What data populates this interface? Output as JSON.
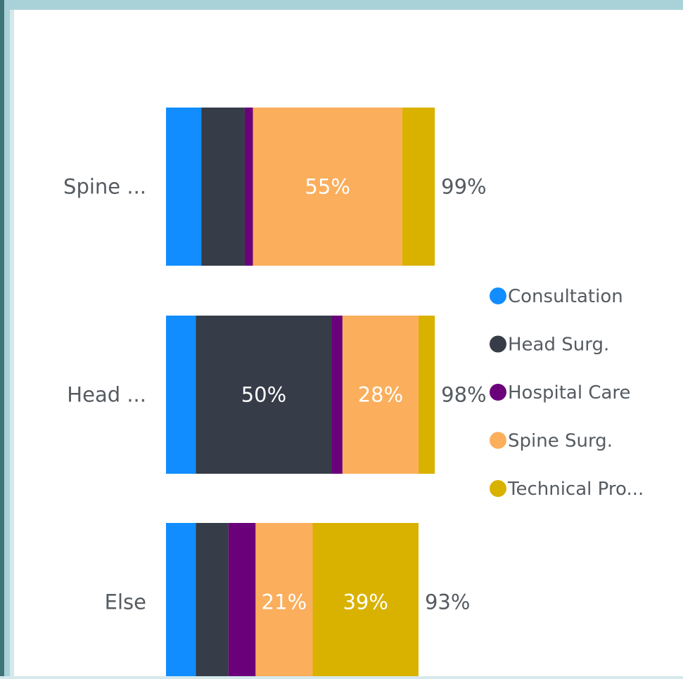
{
  "chart_data": {
    "type": "bar",
    "orientation": "horizontal",
    "stacked": true,
    "categories": [
      "Spine ...",
      "Head ...",
      "Else"
    ],
    "series": [
      {
        "name": "Consultation",
        "color": "#118dff",
        "values": [
          13,
          11,
          11
        ],
        "labels": [
          "",
          "",
          ""
        ]
      },
      {
        "name": "Head Surg.",
        "color": "#363c48",
        "values": [
          16,
          50,
          12
        ],
        "labels": [
          "",
          "50%",
          ""
        ]
      },
      {
        "name": "Hospital Care",
        "color": "#6b007b",
        "values": [
          3,
          4,
          10
        ],
        "labels": [
          "",
          "",
          ""
        ]
      },
      {
        "name": "Spine Surg.",
        "color": "#fbae5c",
        "values": [
          55,
          28,
          21
        ],
        "labels": [
          "55%",
          "28%",
          "21%"
        ]
      },
      {
        "name": "Technical Pro...",
        "color": "#d9b200",
        "values": [
          12,
          6,
          39
        ],
        "labels": [
          "",
          "",
          "39%"
        ]
      }
    ],
    "totals": [
      "99%",
      "98%",
      "93%"
    ],
    "legend": {
      "position": "right",
      "items": [
        "Consultation",
        "Head Surg.",
        "Hospital Care",
        "Spine Surg.",
        "Technical Pro..."
      ]
    },
    "xlim": [
      0,
      100
    ],
    "grid": false
  }
}
